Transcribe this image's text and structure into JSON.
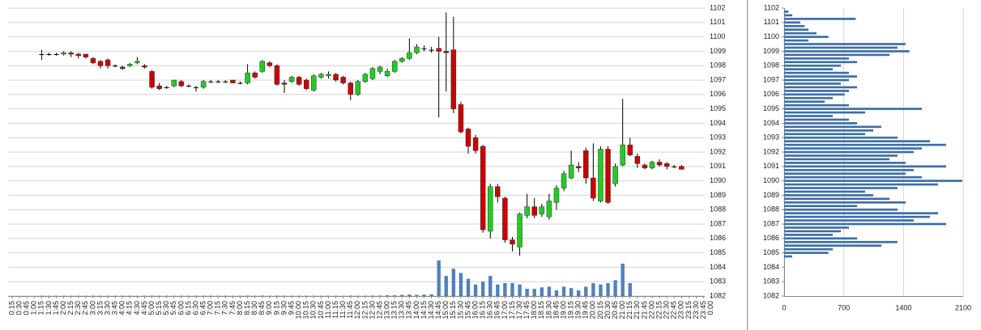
{
  "chart_data": [
    {
      "type": "candlestick",
      "categories": [
        "0:15",
        "0:30",
        "0:45",
        "1:00",
        "1:15",
        "1:30",
        "1:45",
        "2:00",
        "2:15",
        "2:30",
        "2:45",
        "3:00",
        "3:15",
        "3:30",
        "3:45",
        "4:00",
        "4:15",
        "4:30",
        "4:45",
        "5:00",
        "5:15",
        "5:30",
        "5:45",
        "6:00",
        "6:15",
        "6:30",
        "6:45",
        "7:00",
        "7:15",
        "7:30",
        "7:45",
        "8:00",
        "8:15",
        "8:30",
        "8:45",
        "9:00",
        "9:15",
        "9:30",
        "9:45",
        "10:00",
        "10:15",
        "10:30",
        "10:45",
        "11:00",
        "11:15",
        "11:30",
        "11:45",
        "12:00",
        "12:15",
        "12:30",
        "12:45",
        "13:00",
        "13:15",
        "13:30",
        "13:45",
        "14:00",
        "14:15",
        "14:30",
        "14:45",
        "15:00",
        "15:15",
        "15:30",
        "15:45",
        "16:00",
        "16:15",
        "16:30",
        "16:45",
        "17:00",
        "17:15",
        "17:30",
        "17:45",
        "18:00",
        "18:15",
        "18:30",
        "18:45",
        "19:00",
        "19:15",
        "19:30",
        "19:45",
        "20:00",
        "20:15",
        "20:30",
        "20:45",
        "21:00",
        "21:15",
        "21:30",
        "21:45",
        "22:00",
        "22:15",
        "22:30",
        "22:45",
        "23:00",
        "23:15",
        "23:30",
        "23:45",
        "0:00"
      ],
      "open": [
        null,
        null,
        null,
        null,
        1098.8,
        1098.8,
        1098.8,
        1098.8,
        1098.9,
        1098.8,
        1098.8,
        1098.5,
        1098.3,
        1098.4,
        1098.0,
        1097.9,
        1098.0,
        1098.2,
        1098.0,
        1097.6,
        1096.6,
        1096.5,
        1096.6,
        1096.9,
        1096.6,
        1096.5,
        1096.5,
        1096.9,
        1096.9,
        1096.9,
        1097.0,
        1096.8,
        1096.8,
        1097.5,
        1097.6,
        1098.2,
        1098.0,
        1096.8,
        1096.9,
        1097.2,
        1097.0,
        1096.3,
        1097.2,
        1097.3,
        1097.4,
        1097.2,
        1096.8,
        1096.0,
        1096.9,
        1097.1,
        1097.6,
        1097.3,
        1097.6,
        1098.3,
        1098.5,
        1098.9,
        1099.2,
        1099.1,
        1099.2,
        1099.0,
        1099.1,
        1095.3,
        1093.6,
        1093.0,
        1092.4,
        1086.5,
        1089.6,
        1088.8,
        1085.9,
        1085.4,
        1087.6,
        1088.2,
        1087.7,
        1087.5,
        1088.5,
        1089.5,
        1090.2,
        1091.0,
        1092.1,
        1090.2,
        1088.6,
        1092.2,
        1089.8,
        1091.1,
        1092.5,
        1091.7,
        1091.1,
        1090.9,
        1091.3,
        1091.2,
        1091.0,
        1091.0,
        null,
        null,
        null,
        null
      ],
      "high": [
        null,
        null,
        null,
        null,
        1099.1,
        1098.9,
        1098.9,
        1099.0,
        1099.0,
        1098.9,
        1098.8,
        1098.6,
        1098.4,
        1098.5,
        1098.1,
        1098.0,
        1098.2,
        1098.6,
        1098.1,
        1097.7,
        1096.8,
        1096.6,
        1097.0,
        1097.0,
        1096.7,
        1096.6,
        1097.0,
        1097.0,
        1097.0,
        1097.0,
        1097.0,
        1096.9,
        1098.1,
        1097.6,
        1098.4,
        1098.3,
        1098.1,
        1097.0,
        1097.3,
        1097.3,
        1097.1,
        1097.4,
        1097.5,
        1097.6,
        1097.5,
        1097.3,
        1096.9,
        1097.0,
        1097.5,
        1097.9,
        1098.0,
        1097.8,
        1098.4,
        1098.6,
        1099.9,
        1099.5,
        1099.4,
        1099.3,
        1100.0,
        1101.7,
        1101.4,
        1095.5,
        1093.7,
        1093.2,
        1092.5,
        1089.8,
        1089.8,
        1088.9,
        1086.1,
        1087.8,
        1089.1,
        1088.8,
        1088.4,
        1089.1,
        1089.7,
        1090.7,
        1092.1,
        1091.3,
        1092.3,
        1092.6,
        1092.4,
        1092.4,
        1091.2,
        1095.7,
        1093.0,
        1091.9,
        1091.2,
        1091.4,
        1091.5,
        1091.3,
        1091.1,
        1091.1,
        null,
        null,
        null,
        null
      ],
      "low": [
        null,
        null,
        null,
        null,
        1098.4,
        1098.7,
        1098.7,
        1098.7,
        1098.6,
        1098.5,
        1098.5,
        1098.1,
        1097.8,
        1097.8,
        1097.9,
        1097.7,
        1097.9,
        1098.1,
        1097.8,
        1096.4,
        1096.3,
        1096.4,
        1096.5,
        1096.5,
        1096.5,
        1096.2,
        1096.4,
        1096.8,
        1096.8,
        1096.8,
        1096.8,
        1096.7,
        1096.7,
        1097.1,
        1097.5,
        1097.9,
        1096.6,
        1096.1,
        1096.8,
        1096.6,
        1096.3,
        1096.2,
        1097.1,
        1097.1,
        1096.9,
        1096.7,
        1095.6,
        1095.9,
        1096.8,
        1097.0,
        1097.4,
        1097.2,
        1097.5,
        1098.2,
        1098.4,
        1098.8,
        1099.0,
        1098.9,
        1094.4,
        1096.2,
        1094.7,
        1093.3,
        1091.9,
        1091.9,
        1086.4,
        1086.0,
        1088.5,
        1085.7,
        1085.1,
        1084.8,
        1087.4,
        1087.4,
        1087.5,
        1087.3,
        1088.0,
        1089.3,
        1090.1,
        1090.6,
        1089.8,
        1088.6,
        1088.5,
        1088.4,
        1089.6,
        1091.0,
        1091.7,
        1090.9,
        1090.8,
        1090.8,
        1091.0,
        1090.8,
        1090.9,
        1090.8,
        null,
        null,
        null,
        null
      ],
      "close": [
        null,
        null,
        null,
        null,
        1098.8,
        1098.8,
        1098.8,
        1098.9,
        1098.8,
        1098.7,
        1098.6,
        1098.2,
        1098.0,
        1098.0,
        1098.0,
        1097.8,
        1098.1,
        1098.3,
        1097.9,
        1096.5,
        1096.4,
        1096.5,
        1097.0,
        1096.6,
        1096.6,
        1096.5,
        1096.9,
        1096.9,
        1096.9,
        1096.9,
        1096.8,
        1096.8,
        1097.5,
        1097.2,
        1098.3,
        1098.0,
        1096.7,
        1096.7,
        1097.2,
        1096.7,
        1096.4,
        1097.3,
        1097.4,
        1097.4,
        1097.0,
        1096.8,
        1096.0,
        1096.9,
        1097.4,
        1097.8,
        1097.9,
        1097.6,
        1098.3,
        1098.5,
        1098.9,
        1099.3,
        1099.2,
        1099.1,
        1099.0,
        1098.9,
        1095.0,
        1093.4,
        1092.4,
        1092.1,
        1086.6,
        1089.6,
        1088.9,
        1085.9,
        1085.6,
        1087.7,
        1088.2,
        1087.6,
        1088.2,
        1088.6,
        1089.5,
        1090.5,
        1091.1,
        1090.9,
        1090.2,
        1088.8,
        1092.2,
        1088.5,
        1091.0,
        1092.5,
        1091.8,
        1091.2,
        1090.9,
        1091.3,
        1091.1,
        1091.0,
        1091.0,
        1090.8,
        null,
        null,
        null,
        null
      ],
      "volume": [
        null,
        null,
        null,
        null,
        1082.02,
        1082.02,
        1082.02,
        1082.02,
        1082.02,
        1082.02,
        1082.02,
        1082.02,
        1082.02,
        1082.02,
        1082.02,
        1082.02,
        1082.02,
        1082.02,
        1082.02,
        1082.03,
        1082.02,
        1082.02,
        1082.02,
        1082.02,
        1082.02,
        1082.02,
        1082.02,
        1082.02,
        1082.02,
        1082.02,
        1082.02,
        1082.02,
        1082.03,
        1082.02,
        1082.03,
        1082.02,
        1082.03,
        1082.02,
        1082.02,
        1082.02,
        1082.02,
        1082.02,
        1082.02,
        1082.02,
        1082.02,
        1082.02,
        1082.03,
        1082.02,
        1082.02,
        1082.03,
        1082.03,
        1082.05,
        1082.05,
        1082.08,
        1082.1,
        1082.08,
        1082.1,
        1082.12,
        1084.47,
        1083.4,
        1083.9,
        1083.6,
        1083.2,
        1082.8,
        1083.0,
        1083.4,
        1082.8,
        1082.9,
        1082.9,
        1082.8,
        1082.5,
        1082.5,
        1082.6,
        1082.65,
        1082.4,
        1082.65,
        1082.55,
        1082.4,
        1082.65,
        1082.9,
        1082.8,
        1082.9,
        1083.1,
        1084.25,
        1082.9,
        null,
        null,
        null,
        null,
        null,
        null,
        null,
        null,
        null,
        null,
        null
      ],
      "ylim": [
        1082,
        1102
      ],
      "yticks": [
        1082,
        1083,
        1084,
        1085,
        1086,
        1087,
        1088,
        1089,
        1090,
        1091,
        1092,
        1093,
        1094,
        1095,
        1096,
        1097,
        1098,
        1099,
        1100,
        1101,
        1102
      ],
      "up_color": "#22cc22",
      "down_color": "#cc0000",
      "flat_color": "#000000",
      "volume_color": "#4f81bd",
      "grid": true
    },
    {
      "type": "bar",
      "orientation": "horizontal",
      "y": [
        1084.75,
        1085,
        1085.25,
        1085.5,
        1085.75,
        1086,
        1086.25,
        1086.5,
        1086.75,
        1087,
        1087.25,
        1087.5,
        1087.75,
        1088,
        1088.25,
        1088.5,
        1088.75,
        1089,
        1089.25,
        1089.5,
        1089.75,
        1090,
        1090.25,
        1090.5,
        1090.75,
        1091,
        1091.25,
        1091.5,
        1091.75,
        1092,
        1092.25,
        1092.5,
        1092.75,
        1093,
        1093.25,
        1093.5,
        1093.75,
        1094,
        1094.25,
        1094.5,
        1094.75,
        1095,
        1095.25,
        1095.5,
        1095.75,
        1096,
        1096.25,
        1096.5,
        1096.75,
        1097,
        1097.25,
        1097.5,
        1097.75,
        1098,
        1098.25,
        1098.5,
        1098.75,
        1099,
        1099.25,
        1099.5,
        1099.75,
        1100,
        1100.25,
        1100.5,
        1100.75,
        1101,
        1101.25,
        1101.5,
        1101.75
      ],
      "values": [
        95,
        520,
        570,
        1140,
        1330,
        855,
        570,
        665,
        760,
        1900,
        1520,
        1710,
        1805,
        1330,
        855,
        1425,
        1235,
        1045,
        950,
        1330,
        1805,
        2090,
        1615,
        1425,
        1520,
        1900,
        1425,
        1235,
        1330,
        1520,
        1615,
        1900,
        1710,
        1330,
        950,
        1045,
        1140,
        855,
        760,
        570,
        950,
        1615,
        760,
        475,
        570,
        710,
        760,
        855,
        665,
        760,
        855,
        760,
        570,
        665,
        855,
        760,
        1235,
        1470,
        1330,
        1425,
        285,
        520,
        380,
        285,
        240,
        190,
        840,
        95,
        50
      ],
      "xlim": [
        0,
        2100
      ],
      "xticks": [
        0,
        700,
        1400,
        2100
      ],
      "ylim": [
        1082,
        1102
      ],
      "yticks": [
        1082,
        1083,
        1084,
        1085,
        1086,
        1087,
        1088,
        1089,
        1090,
        1091,
        1092,
        1093,
        1094,
        1095,
        1096,
        1097,
        1098,
        1099,
        1100,
        1101,
        1102
      ],
      "color": "#3c6ea5",
      "grid": true
    }
  ]
}
